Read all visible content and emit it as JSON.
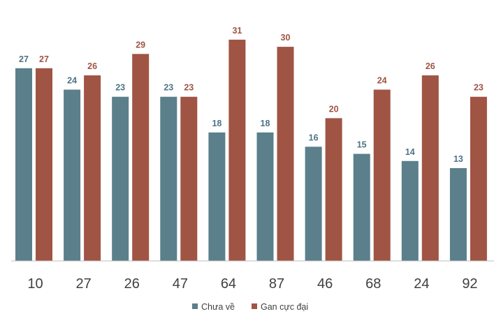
{
  "chart_data": {
    "type": "bar",
    "categories": [
      "10",
      "27",
      "26",
      "47",
      "64",
      "87",
      "46",
      "68",
      "24",
      "92"
    ],
    "series": [
      {
        "name": "Chưa về",
        "color": "#5b7f8b",
        "values": [
          27,
          24,
          23,
          23,
          18,
          18,
          16,
          15,
          14,
          13
        ]
      },
      {
        "name": "Gan cực đại",
        "color": "#a05443",
        "values": [
          27,
          26,
          29,
          23,
          31,
          30,
          20,
          24,
          26,
          23
        ]
      }
    ],
    "ylim": [
      0,
      31
    ],
    "grid": false,
    "data_labels": true,
    "legend_position": "bottom",
    "title": "",
    "xlabel": "",
    "ylabel": "",
    "colors": {
      "series1_label": "#4e7384",
      "series2_label": "#a05443",
      "axis": "#bfbfbf",
      "text": "#404040"
    }
  }
}
